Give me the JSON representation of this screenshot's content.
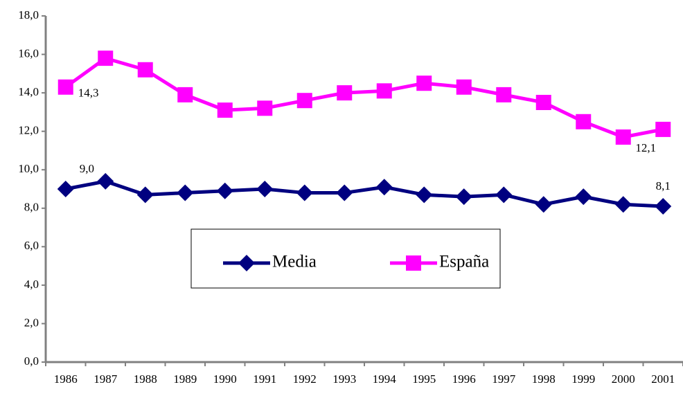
{
  "chart_data": {
    "type": "line",
    "categories": [
      "1986",
      "1987",
      "1988",
      "1989",
      "1990",
      "1991",
      "1992",
      "1993",
      "1994",
      "1995",
      "1996",
      "1997",
      "1998",
      "1999",
      "2000",
      "2001"
    ],
    "series": [
      {
        "name": "Media",
        "color": "#000080",
        "marker": "diamond",
        "values": [
          9.0,
          9.4,
          8.7,
          8.8,
          8.9,
          9.0,
          8.8,
          8.8,
          9.1,
          8.7,
          8.6,
          8.7,
          8.2,
          8.6,
          8.2,
          8.1
        ],
        "value_labels": [
          "9,0",
          null,
          null,
          null,
          null,
          null,
          null,
          null,
          null,
          null,
          null,
          null,
          null,
          null,
          null,
          "8,1"
        ]
      },
      {
        "name": "España",
        "color": "#ff00ff",
        "marker": "square",
        "values": [
          14.3,
          15.8,
          15.2,
          13.9,
          13.1,
          13.2,
          13.6,
          14.0,
          14.1,
          14.5,
          14.3,
          13.9,
          13.5,
          12.5,
          11.7,
          12.1
        ],
        "value_labels": [
          "14,3",
          null,
          null,
          null,
          null,
          null,
          null,
          null,
          null,
          null,
          null,
          null,
          null,
          null,
          null,
          "12,1"
        ]
      }
    ],
    "ylim": [
      0,
      18
    ],
    "yticks": [
      {
        "value": 0,
        "label": "0,0"
      },
      {
        "value": 2,
        "label": "2,0"
      },
      {
        "value": 4,
        "label": "4,0"
      },
      {
        "value": 6,
        "label": "6,0"
      },
      {
        "value": 8,
        "label": "8,0"
      },
      {
        "value": 10,
        "label": "10,0"
      },
      {
        "value": 12,
        "label": "12,0"
      },
      {
        "value": 14,
        "label": "14,0"
      },
      {
        "value": 16,
        "label": "16,0"
      },
      {
        "value": 18,
        "label": "18,0"
      }
    ],
    "grid": false,
    "legend": "center"
  }
}
